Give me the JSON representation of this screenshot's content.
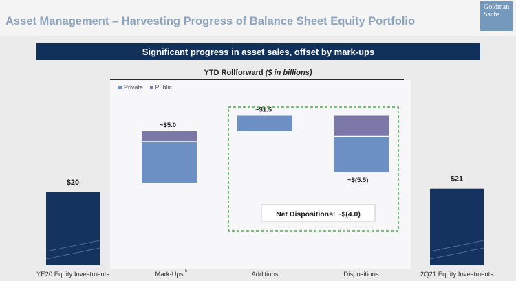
{
  "page": {
    "title": "Asset Management – Harvesting Progress of Balance Sheet Equity Portfolio",
    "logo_line1": "Goldman",
    "logo_line2": "Sachs"
  },
  "banner": {
    "text": "Significant progress in asset sales, offset by mark-ups"
  },
  "chart_data": {
    "type": "bar",
    "subtype": "waterfall",
    "title_main": "YTD Rollforward",
    "title_units": "($ in billions)",
    "legend": [
      "Private",
      "Public"
    ],
    "categories": [
      "YE20 Equity Investments",
      "Mark-Ups",
      "Additions",
      "Dispositions",
      "2Q21 Equity Investments"
    ],
    "footnote_marks": {
      "Mark-Ups": "5"
    },
    "totals": [
      {
        "category": "YE20 Equity Investments",
        "value": 20,
        "label": "$20"
      },
      {
        "category": "2Q21 Equity Investments",
        "value": 21,
        "label": "$21"
      }
    ],
    "steps": [
      {
        "category": "Mark-Ups",
        "start": 20,
        "end": 25,
        "private": 4.0,
        "public": 1.0,
        "label": "~$5.0"
      },
      {
        "category": "Additions",
        "start": 25,
        "end": 26.5,
        "private": 1.5,
        "public": 0,
        "label": "~$1.5"
      },
      {
        "category": "Dispositions",
        "start": 26.5,
        "end": 21,
        "private": -3.5,
        "public": -2.0,
        "label": "~$(5.5)"
      }
    ],
    "callout": "Net Dispositions: ~$(4.0)",
    "colors": {
      "total": "#14335e",
      "private": "#6c90c3",
      "public": "#7b78a8",
      "callout_border": "#4caf50"
    }
  }
}
